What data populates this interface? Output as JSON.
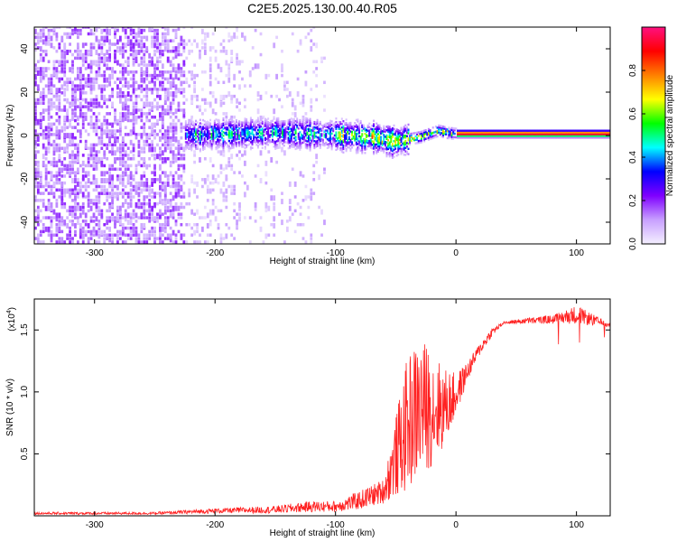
{
  "title": "C2E5.2025.130.00.40.R05",
  "colors": {
    "signal": "#ff2020",
    "spectrogram_low": "#e8d8ff",
    "spectrogram_high": "#ff1050"
  },
  "chart_data": [
    {
      "type": "heatmap",
      "name": "spectrogram",
      "xlabel": "Height of straight line (km)",
      "ylabel": "Frequency (Hz)",
      "xlim": [
        -350,
        128
      ],
      "ylim": [
        -50,
        50
      ],
      "xticks": [
        -300,
        -200,
        -100,
        0,
        100
      ],
      "yticks": [
        -40,
        -20,
        0,
        20,
        40
      ],
      "grid": false,
      "ridge": [
        {
          "x": -220,
          "y": 0
        },
        {
          "x": -150,
          "y": 1
        },
        {
          "x": -100,
          "y": 0
        },
        {
          "x": -70,
          "y": -1
        },
        {
          "x": -50,
          "y": -3
        },
        {
          "x": -30,
          "y": -1
        },
        {
          "x": -15,
          "y": 2
        },
        {
          "x": -8,
          "y": 1
        },
        {
          "x": 0,
          "y": 0.5
        },
        {
          "x": 128,
          "y": 0.5
        }
      ],
      "colorbar": {
        "label": "Normalized spectral amplitude",
        "range": [
          0,
          1
        ],
        "ticks": [
          "0.0",
          "0.2",
          "0.4",
          "0.6",
          "0.8"
        ],
        "stops": [
          "#f4f0ff",
          "#c8a0ff",
          "#7f00ff",
          "#0000ff",
          "#00ffff",
          "#00ff00",
          "#ffff00",
          "#ff8000",
          "#ff0000",
          "#ff1080"
        ]
      }
    },
    {
      "type": "line",
      "name": "snr",
      "xlabel": "Height of straight line (km)",
      "ylabel": "SNR (10 * v/v)",
      "yscale_label": "(x10",
      "yscale_exponent": "4",
      "xlim": [
        -350,
        128
      ],
      "ylim": [
        0,
        1.75
      ],
      "xticks": [
        -300,
        -200,
        -100,
        0,
        100
      ],
      "yticks": [
        "0.5",
        "1.0",
        "1.5"
      ],
      "grid": false,
      "envelope_x": [
        -350,
        -300,
        -250,
        -200,
        -150,
        -120,
        -100,
        -80,
        -60,
        -50,
        -40,
        -30,
        -20,
        -10,
        0,
        10,
        20,
        30,
        40,
        60,
        80,
        100,
        128
      ],
      "envelope_low": [
        0.01,
        0.01,
        0.01,
        0.02,
        0.02,
        0.03,
        0.03,
        0.05,
        0.1,
        0.15,
        0.2,
        0.3,
        0.4,
        0.55,
        0.8,
        1.1,
        1.3,
        1.45,
        1.55,
        1.55,
        1.55,
        1.55,
        1.52
      ],
      "envelope_high": [
        0.03,
        0.03,
        0.03,
        0.06,
        0.08,
        0.12,
        0.12,
        0.2,
        0.3,
        0.8,
        1.3,
        1.45,
        1.35,
        1.2,
        1.15,
        1.25,
        1.4,
        1.52,
        1.57,
        1.6,
        1.62,
        1.7,
        1.55
      ]
    }
  ]
}
